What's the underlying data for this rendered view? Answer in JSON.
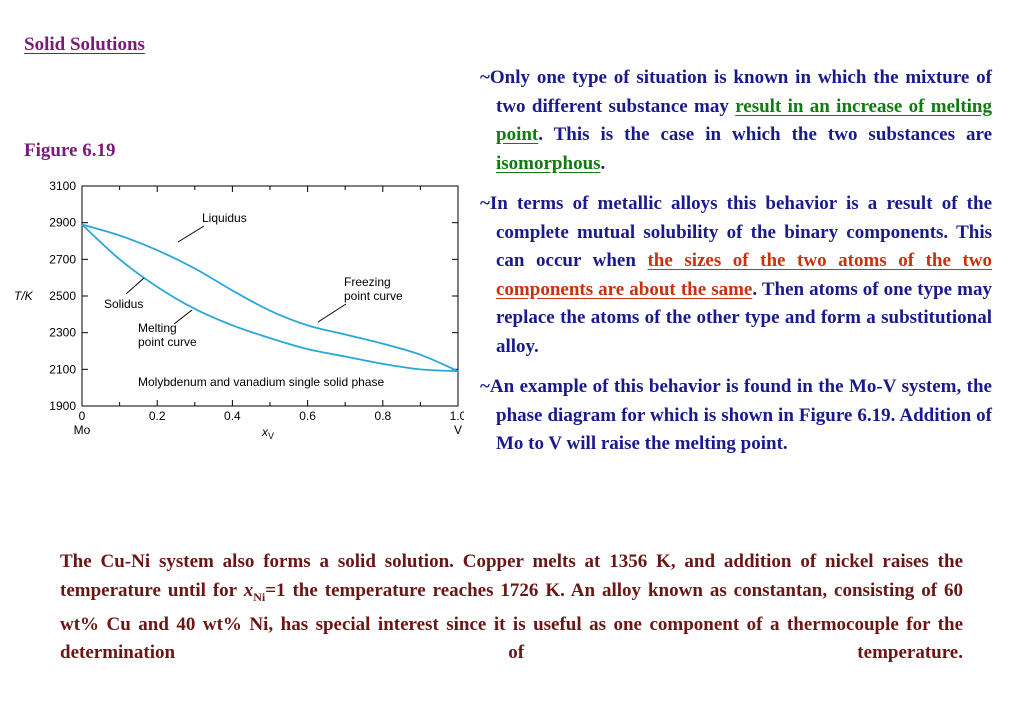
{
  "title": "Solid Solutions",
  "figure_label": "Figure 6.19",
  "bullets": [
    {
      "parts": [
        {
          "text": "~Only one type of situation is known in which the mixture of two different substance may ",
          "style": "plain"
        },
        {
          "text": "result in an increase of melting point",
          "style": "green"
        },
        {
          "text": ". This is the case in which the two substances are ",
          "style": "plain"
        },
        {
          "text": "isomorphous",
          "style": "green"
        },
        {
          "text": ".",
          "style": "plain"
        }
      ]
    },
    {
      "parts": [
        {
          "text": "~In terms of metallic alloys this behavior is a result of the complete mutual solubility of the binary components. This can occur when ",
          "style": "plain"
        },
        {
          "text": "the sizes of the two atoms of the two components are about the same",
          "style": "red"
        },
        {
          "text": ". Then atoms of one type may replace the atoms of the other type and form a substitutional alloy.",
          "style": "plain"
        }
      ]
    },
    {
      "parts": [
        {
          "text": "~An example of this behavior is found in the Mo-V system, the phase diagram for which is shown in Figure 6.19.  Addition of Mo to V will raise the melting point.",
          "style": "plain"
        }
      ]
    }
  ],
  "bottom": {
    "p1": "The Cu-Ni system also forms a solid solution. Copper melts at 1356 K, and addition of nickel raises the temperature until for ",
    "x_var": "x",
    "x_sub": "Ni",
    "p2": "=1 the temperature reaches 1726 K. An alloy known as constantan, consisting of 60 wt% Cu and 40 wt% Ni, has special interest since it is useful as one component of a thermocouple for the determination of temperature."
  },
  "chart_data": {
    "type": "line",
    "xlabel_var": "x",
    "xlabel_sub": "V",
    "ylabel": "T/K",
    "xlim": [
      0,
      1.0
    ],
    "ylim": [
      1900,
      3100
    ],
    "x_ticks": [
      "0",
      "0.2",
      "0.4",
      "0.6",
      "0.8",
      "1.0"
    ],
    "y_ticks": [
      "3100",
      "2900",
      "2700",
      "2500",
      "2300",
      "2100",
      "1900"
    ],
    "x_end_labels": [
      "Mo",
      "V"
    ],
    "series": [
      {
        "name": "Liquidus",
        "x": [
          0,
          0.1,
          0.2,
          0.3,
          0.4,
          0.5,
          0.6,
          0.7,
          0.8,
          0.9,
          1.0
        ],
        "y": [
          2890,
          2830,
          2750,
          2650,
          2530,
          2420,
          2340,
          2290,
          2240,
          2180,
          2090
        ]
      },
      {
        "name": "Solidus",
        "x": [
          0,
          0.1,
          0.2,
          0.3,
          0.4,
          0.5,
          0.6,
          0.7,
          0.8,
          0.9,
          1.0
        ],
        "y": [
          2890,
          2700,
          2550,
          2430,
          2340,
          2270,
          2210,
          2170,
          2130,
          2100,
          2090
        ]
      }
    ],
    "annotations": [
      {
        "text": "Liquidus"
      },
      {
        "text": "Solidus"
      },
      {
        "text_lines": [
          "Freezing",
          "point curve"
        ]
      },
      {
        "text_lines": [
          "Melting",
          "point curve"
        ]
      },
      {
        "text": "Molybdenum and vanadium single solid phase"
      }
    ],
    "grid": false,
    "legend": "none"
  },
  "colors": {
    "title": "#7a1a7a",
    "body": "#1a1a8c",
    "green_highlight": "#117a11",
    "red_highlight": "#c8320c",
    "bottom_text": "#6b1515",
    "curve": "#2aa6dc"
  }
}
